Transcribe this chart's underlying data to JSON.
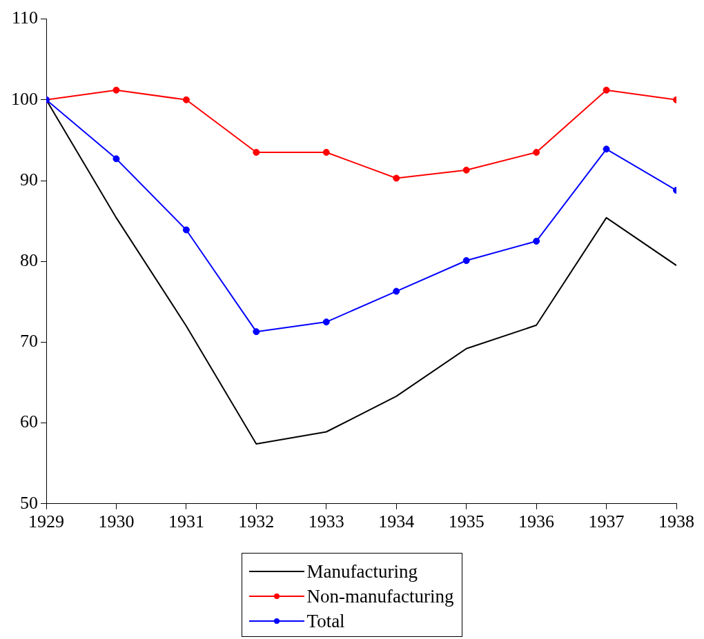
{
  "chart_data": {
    "type": "line",
    "x": [
      1929,
      1930,
      1931,
      1932,
      1933,
      1934,
      1935,
      1936,
      1937,
      1938
    ],
    "xlim": [
      1929,
      1938
    ],
    "xticks": [
      1929,
      1930,
      1931,
      1932,
      1933,
      1934,
      1935,
      1936,
      1937,
      1938
    ],
    "ylim": [
      50,
      110
    ],
    "yticks": [
      50,
      60,
      70,
      80,
      90,
      100,
      110
    ],
    "grid": false,
    "legend": "bottom",
    "series": [
      {
        "name": "Manufacturing",
        "color": "#000000",
        "marker": "none",
        "values": [
          100,
          85.4,
          72.0,
          57.4,
          58.9,
          63.3,
          69.2,
          72.1,
          85.4,
          79.5
        ]
      },
      {
        "name": "Non-manufacturing",
        "color": "#ff0000",
        "marker": "circle",
        "values": [
          100,
          101.2,
          100.0,
          93.5,
          93.5,
          90.3,
          91.3,
          93.5,
          101.2,
          100.0
        ]
      },
      {
        "name": "Total",
        "color": "#0000ff",
        "marker": "circle",
        "values": [
          100,
          92.7,
          83.9,
          71.3,
          72.5,
          76.3,
          80.1,
          82.5,
          93.9,
          88.8
        ]
      }
    ]
  }
}
